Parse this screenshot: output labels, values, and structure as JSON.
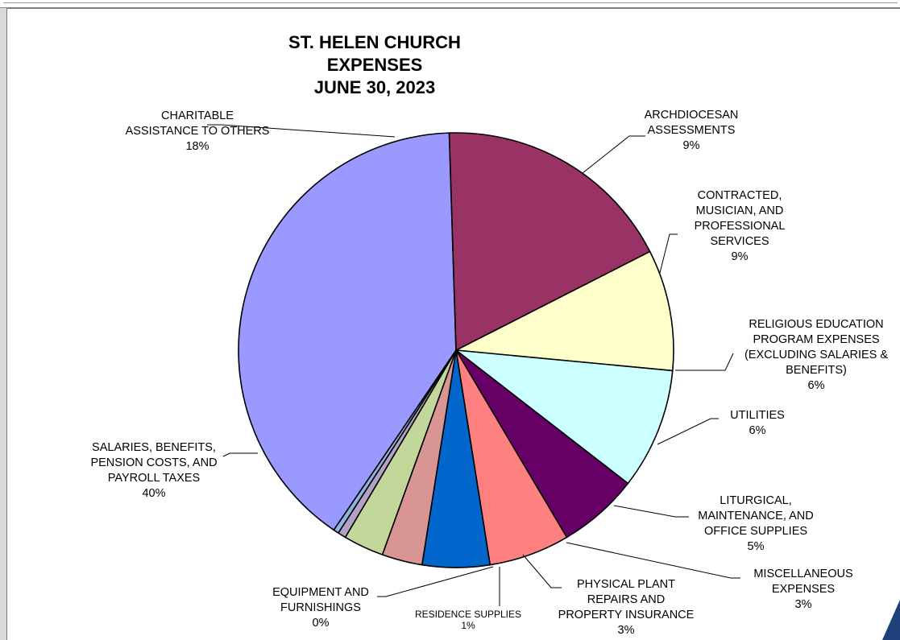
{
  "chart_data": {
    "type": "pie",
    "title_lines": [
      "ST. HELEN CHURCH",
      "EXPENSES",
      "JUNE 30, 2023"
    ],
    "start_angle_deg": -27,
    "direction": "clockwise",
    "slices": [
      {
        "label_lines": [
          "ARCHDIOCESAN",
          "ASSESSMENTS"
        ],
        "pct_label": "9%",
        "value": 9,
        "color": "#ffffcc"
      },
      {
        "label_lines": [
          "CONTRACTED,",
          "MUSICIAN,  AND",
          "PROFESSIONAL",
          "SERVICES"
        ],
        "pct_label": "9%",
        "value": 9,
        "color": "#ccffff"
      },
      {
        "label_lines": [
          "RELIGIOUS EDUCATION",
          "PROGRAM EXPENSES",
          "(EXCLUDING SALARIES &",
          "BENEFITS)"
        ],
        "pct_label": "6%",
        "value": 6,
        "color": "#660066"
      },
      {
        "label_lines": [
          "UTILITIES"
        ],
        "pct_label": "6%",
        "value": 6,
        "color": "#ff8080"
      },
      {
        "label_lines": [
          "LITURGICAL,",
          "MAINTENANCE, AND",
          "OFFICE SUPPLIES"
        ],
        "pct_label": "5%",
        "value": 5,
        "color": "#0066cc"
      },
      {
        "label_lines": [
          "MISCELLANEOUS",
          "EXPENSES"
        ],
        "pct_label": "3%",
        "value": 3,
        "color": "#d99594"
      },
      {
        "label_lines": [
          "PHYSICAL PLANT",
          "REPAIRS AND",
          "PROPERTY INSURANCE"
        ],
        "pct_label": "3%",
        "value": 3,
        "color": "#c4d79b"
      },
      {
        "label_lines": [
          "RESIDENCE SUPPLIES"
        ],
        "pct_label": "1%",
        "value": 0.6,
        "color": "#b3a2c7"
      },
      {
        "label_lines": [
          "EQUIPMENT AND",
          "FURNISHINGS"
        ],
        "pct_label": "0%",
        "value": 0.4,
        "color": "#8db3e2"
      },
      {
        "label_lines": [
          "SALARIES, BENEFITS,",
          "PENSION COSTS, AND",
          "PAYROLL TAXES"
        ],
        "pct_label": "40%",
        "value": 40,
        "color": "#9999ff"
      },
      {
        "label_lines": [
          "CHARITABLE",
          "ASSISTANCE TO OTHERS"
        ],
        "pct_label": "18%",
        "value": 18,
        "color": "#993366"
      }
    ]
  }
}
